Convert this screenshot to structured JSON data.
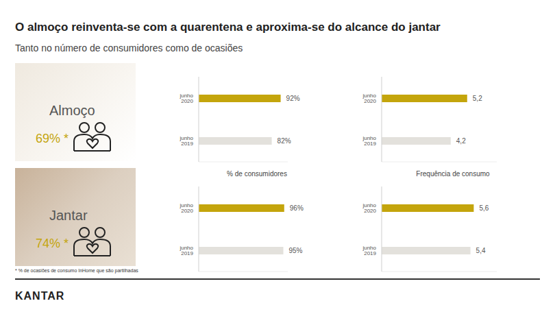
{
  "title": "O almoço reinventa-se com a quarentena e aproxima-se do alcance do jantar",
  "subtitle": "Tanto no número de consumidores como de ocasiões",
  "panels": [
    {
      "label": "Almoço",
      "share": "69% *"
    },
    {
      "label": "Jantar",
      "share": "74% *"
    }
  ],
  "footnote": "* % de ocasiões de consumo InHome que são partilhadas",
  "brand": "KANTAR",
  "chart_data": [
    {
      "type": "bar",
      "orientation": "horizontal",
      "xlabel": "% de consumidores",
      "categories": [
        "junho 2020",
        "junho 2019"
      ],
      "values": [
        92,
        82
      ],
      "value_labels": [
        "92%",
        "82%"
      ],
      "colors": [
        "#c4a50c",
        "#e3e1dc"
      ],
      "xlim": [
        0,
        100
      ],
      "data_labels": true,
      "tick_labels": "y",
      "grid": false
    },
    {
      "type": "bar",
      "orientation": "horizontal",
      "xlabel": "Frequência de consumo",
      "categories": [
        "junho 2020",
        "junho 2019"
      ],
      "values": [
        5.2,
        4.2
      ],
      "value_labels": [
        "5,2",
        "4,2"
      ],
      "colors": [
        "#c4a50c",
        "#e3e1dc"
      ],
      "xlim": [
        0,
        7
      ],
      "data_labels": true,
      "tick_labels": "y",
      "grid": false
    },
    {
      "type": "bar",
      "orientation": "horizontal",
      "categories": [
        "junho 2020",
        "junho 2019"
      ],
      "values": [
        96,
        95
      ],
      "value_labels": [
        "96%",
        "95%"
      ],
      "colors": [
        "#c4a50c",
        "#e3e1dc"
      ],
      "xlim": [
        0,
        100
      ],
      "data_labels": true,
      "tick_labels": "y",
      "grid": false
    },
    {
      "type": "bar",
      "orientation": "horizontal",
      "categories": [
        "junho 2020",
        "junho 2019"
      ],
      "values": [
        5.6,
        5.4
      ],
      "value_labels": [
        "5,6",
        "5,4"
      ],
      "colors": [
        "#c4a50c",
        "#e3e1dc"
      ],
      "xlim": [
        0,
        7
      ],
      "data_labels": true,
      "tick_labels": "y",
      "grid": false
    }
  ]
}
